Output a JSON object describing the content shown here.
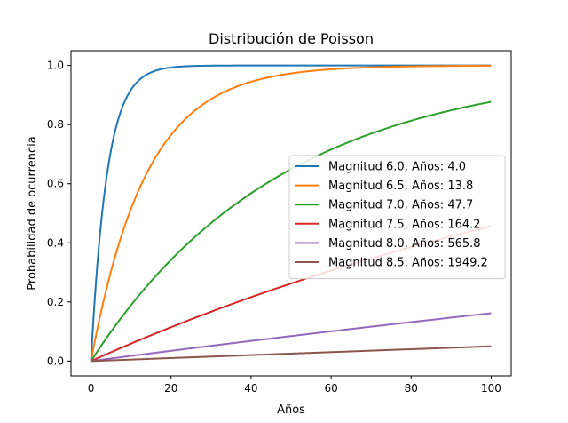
{
  "chart_data": {
    "type": "line",
    "title": "Distribución de Poisson",
    "xlabel": "Años",
    "ylabel": "Probabilidad de ocurrencia",
    "xlim": [
      -5,
      105
    ],
    "ylim": [
      -0.05,
      1.05
    ],
    "x_range": [
      0,
      100
    ],
    "xticks": [
      0,
      20,
      40,
      60,
      80,
      100
    ],
    "xtick_labels": [
      "0",
      "20",
      "40",
      "60",
      "80",
      "100"
    ],
    "yticks": [
      0.0,
      0.2,
      0.4,
      0.6,
      0.8,
      1.0
    ],
    "ytick_labels": [
      "0.0",
      "0.2",
      "0.4",
      "0.6",
      "0.8",
      "1.0"
    ],
    "grid": false,
    "legend_position": "center-right",
    "series": [
      {
        "name": "Magnitud 6.0, Años: 4.0",
        "return_period": 4.0,
        "color": "#1f77b4"
      },
      {
        "name": "Magnitud 6.5, Años: 13.8",
        "return_period": 13.8,
        "color": "#ff7f0e"
      },
      {
        "name": "Magnitud 7.0, Años: 47.7",
        "return_period": 47.7,
        "color": "#2ca02c"
      },
      {
        "name": "Magnitud 7.5, Años: 164.2",
        "return_period": 164.2,
        "color": "#d62728"
      },
      {
        "name": "Magnitud 8.0, Años: 565.8",
        "return_period": 565.8,
        "color": "#9467bd"
      },
      {
        "name": "Magnitud 8.5, Años: 1949.2",
        "return_period": 1949.2,
        "color": "#8c564b"
      }
    ]
  }
}
